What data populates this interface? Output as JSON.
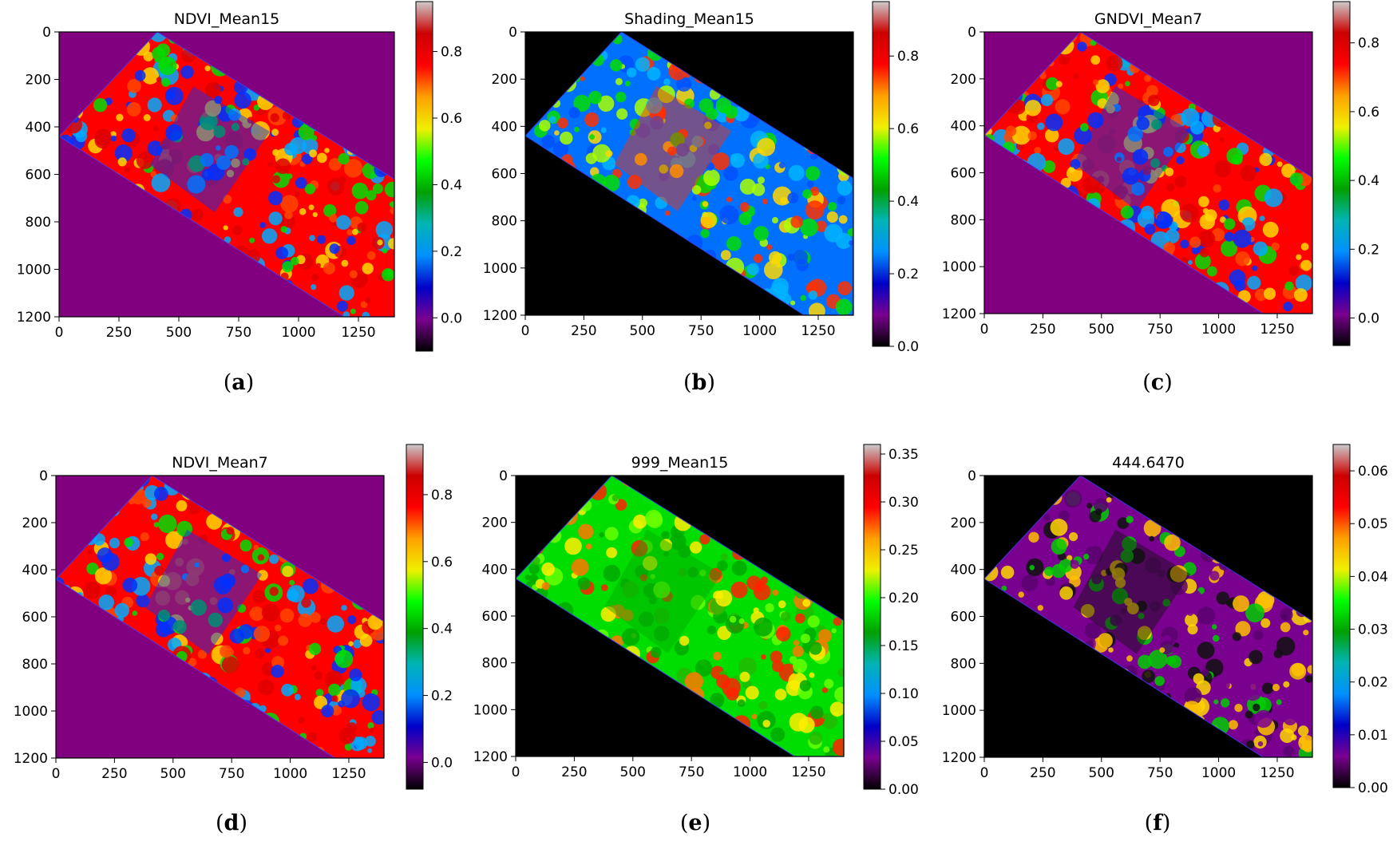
{
  "figure": {
    "colorbar_colors": [
      "#000000",
      "#7a0090",
      "#0000c8",
      "#0090ff",
      "#00b4b4",
      "#00a000",
      "#00ff00",
      "#f0f000",
      "#ffa000",
      "#ff0000",
      "#cc0000",
      "#cccccc"
    ],
    "field_colors": {
      "background_violet": "#800080",
      "background_black": "#000000"
    }
  },
  "chart_data": [
    {
      "type": "heatmap",
      "panel": "(a)",
      "caption_letter": "a",
      "title": "NDVI_Mean15",
      "background": "violet",
      "field_palette": [
        "#ff0000",
        "#e00000",
        "#ff4500",
        "#ffd700",
        "#00dd00",
        "#00aaff",
        "#0030ff"
      ],
      "x_ticks": [
        "0",
        "250",
        "500",
        "750",
        "1000",
        "1250"
      ],
      "y_ticks": [
        "0",
        "200",
        "400",
        "600",
        "800",
        "1000",
        "1200"
      ],
      "xlim": [
        0,
        1400
      ],
      "ylim": [
        1200,
        0
      ],
      "colorbar_ticks": [
        "0.0",
        "0.2",
        "0.4",
        "0.6",
        "0.8"
      ],
      "colorbar_values": [
        0.0,
        0.2,
        0.4,
        0.6,
        0.8
      ],
      "colorbar_range": [
        -0.1,
        0.95
      ]
    },
    {
      "type": "heatmap",
      "panel": "(b)",
      "caption_letter": "b",
      "title": "Shading_Mean15",
      "background": "black",
      "field_palette": [
        "#0070ff",
        "#0050ff",
        "#00b4ff",
        "#00dd00",
        "#aaff00",
        "#ffd700",
        "#ff3000"
      ],
      "x_ticks": [
        "0",
        "250",
        "500",
        "750",
        "1000",
        "1250"
      ],
      "y_ticks": [
        "0",
        "200",
        "400",
        "600",
        "800",
        "1000",
        "1200"
      ],
      "xlim": [
        0,
        1400
      ],
      "ylim": [
        1200,
        0
      ],
      "colorbar_ticks": [
        "0.0",
        "0.2",
        "0.4",
        "0.6",
        "0.8"
      ],
      "colorbar_values": [
        0.0,
        0.2,
        0.4,
        0.6,
        0.8
      ],
      "colorbar_range": [
        0.0,
        0.95
      ]
    },
    {
      "type": "heatmap",
      "panel": "(c)",
      "caption_letter": "c",
      "title": "GNDVI_Mean7",
      "background": "violet",
      "field_palette": [
        "#ff0000",
        "#e00000",
        "#ff4500",
        "#ffd700",
        "#00dd00",
        "#00aaff",
        "#0030ff"
      ],
      "x_ticks": [
        "0",
        "250",
        "500",
        "750",
        "1000",
        "1250"
      ],
      "y_ticks": [
        "0",
        "200",
        "400",
        "600",
        "800",
        "1000",
        "1200"
      ],
      "xlim": [
        0,
        1400
      ],
      "ylim": [
        1200,
        0
      ],
      "colorbar_ticks": [
        "0.0",
        "0.2",
        "0.4",
        "0.6",
        "0.8"
      ],
      "colorbar_values": [
        0.0,
        0.2,
        0.4,
        0.6,
        0.8
      ],
      "colorbar_range": [
        -0.08,
        0.92
      ]
    },
    {
      "type": "heatmap",
      "panel": "(d)",
      "caption_letter": "d",
      "title": "NDVI_Mean7",
      "background": "violet",
      "field_palette": [
        "#ff0000",
        "#e00000",
        "#ff4500",
        "#ffd700",
        "#00dd00",
        "#00aaff",
        "#0030ff"
      ],
      "x_ticks": [
        "0",
        "250",
        "500",
        "750",
        "1000",
        "1250"
      ],
      "y_ticks": [
        "0",
        "200",
        "400",
        "600",
        "800",
        "1000",
        "1200"
      ],
      "xlim": [
        0,
        1400
      ],
      "ylim": [
        1200,
        0
      ],
      "colorbar_ticks": [
        "0.0",
        "0.2",
        "0.4",
        "0.6",
        "0.8"
      ],
      "colorbar_values": [
        0.0,
        0.2,
        0.4,
        0.6,
        0.8
      ],
      "colorbar_range": [
        -0.08,
        0.95
      ]
    },
    {
      "type": "heatmap",
      "panel": "(e)",
      "caption_letter": "e",
      "title": "999_Mean15",
      "background": "black",
      "field_palette": [
        "#00dd00",
        "#66ff00",
        "#22bb00",
        "#ffee00",
        "#ff7700",
        "#ff2200",
        "#00aa00"
      ],
      "x_ticks": [
        "0",
        "250",
        "500",
        "750",
        "1000",
        "1250"
      ],
      "y_ticks": [
        "0",
        "200",
        "400",
        "600",
        "800",
        "1000",
        "1200"
      ],
      "xlim": [
        0,
        1400
      ],
      "ylim": [
        1200,
        0
      ],
      "colorbar_ticks": [
        "0.00",
        "0.05",
        "0.10",
        "0.15",
        "0.20",
        "0.25",
        "0.30",
        "0.35"
      ],
      "colorbar_values": [
        0.0,
        0.05,
        0.1,
        0.15,
        0.2,
        0.25,
        0.3,
        0.35
      ],
      "colorbar_range": [
        0.0,
        0.36
      ]
    },
    {
      "type": "heatmap",
      "panel": "(f)",
      "caption_letter": "f",
      "title": "444.6470",
      "background": "black",
      "field_palette": [
        "#7a0090",
        "#7a0090",
        "#5a0070",
        "#ffc000",
        "#ffd700",
        "#00cc00",
        "#111111"
      ],
      "x_ticks": [
        "0",
        "250",
        "500",
        "750",
        "1000",
        "1250"
      ],
      "y_ticks": [
        "0",
        "200",
        "400",
        "600",
        "800",
        "1000",
        "1200"
      ],
      "xlim": [
        0,
        1400
      ],
      "ylim": [
        1200,
        0
      ],
      "colorbar_ticks": [
        "0.00",
        "0.01",
        "0.02",
        "0.03",
        "0.04",
        "0.05",
        "0.06"
      ],
      "colorbar_values": [
        0.0,
        0.01,
        0.02,
        0.03,
        0.04,
        0.05,
        0.06
      ],
      "colorbar_range": [
        0.0,
        0.065
      ]
    }
  ]
}
